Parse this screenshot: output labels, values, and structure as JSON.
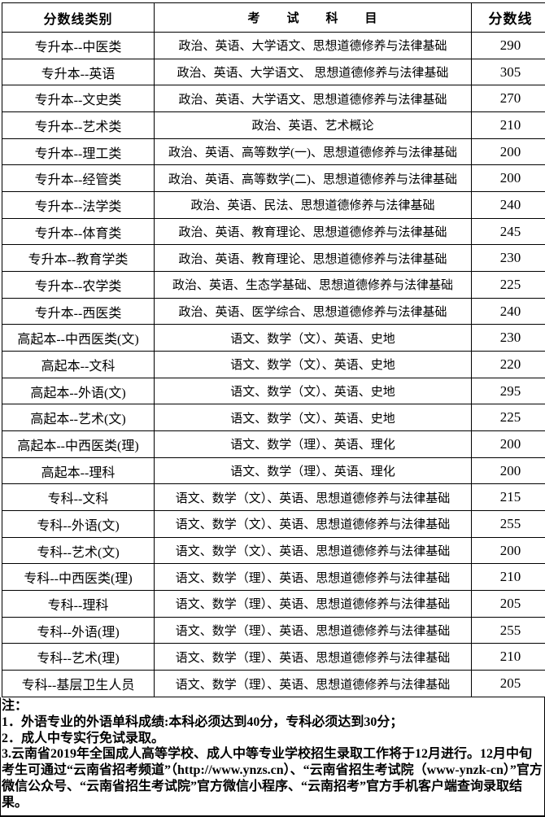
{
  "table": {
    "headers": {
      "category": "分数线类别",
      "subjects": "考　　试　　科　　目",
      "score": "分数线"
    },
    "rows": [
      {
        "category": "专升本--中医类",
        "subjects": "政治、英语、大学语文、思想道德修养与法律基础",
        "score": "290"
      },
      {
        "category": "专升本--英语",
        "subjects": "政治、英语、大学语文、 思想道德修养与法律基础",
        "score": "305"
      },
      {
        "category": "专升本--文史类",
        "subjects": "政治、英语、大学语文、思想道德修养与法律基础",
        "score": "270"
      },
      {
        "category": "专升本--艺术类",
        "subjects": "政治、英语、艺术概论",
        "score": "210"
      },
      {
        "category": "专升本--理工类",
        "subjects": "政治、英语、高等数学(一)、思想道德修养与法律基础",
        "score": "200"
      },
      {
        "category": "专升本--经管类",
        "subjects": "政治、英语、高等数学(二)、思想道德修养与法律基础",
        "score": "200"
      },
      {
        "category": "专升本--法学类",
        "subjects": "政治、英语、民法、思想道德修养与法律基础",
        "score": "240"
      },
      {
        "category": "专升本--体育类",
        "subjects": "政治、英语、教育理论、思想道德修养与法律基础",
        "score": "245"
      },
      {
        "category": "专升本--教育学类",
        "subjects": "政治、英语、教育理论、思想道德修养与法律基础",
        "score": "230"
      },
      {
        "category": "专升本--农学类",
        "subjects": "政治、英语、生态学基础、思想道德修养与法律基础",
        "score": "225"
      },
      {
        "category": "专升本--西医类",
        "subjects": "政治、英语、医学综合、思想道德修养与法律基础",
        "score": "240"
      },
      {
        "category": "高起本--中西医类(文)",
        "subjects": "语文、数学（文）、英语、史地",
        "score": "230"
      },
      {
        "category": "高起本--文科",
        "subjects": "语文、数学（文）、英语、史地",
        "score": "220"
      },
      {
        "category": "高起本--外语(文)",
        "subjects": "语文、数学（文）、英语、史地",
        "score": "295"
      },
      {
        "category": "高起本--艺术(文)",
        "subjects": "语文、数学（文）、英语、史地",
        "score": "225"
      },
      {
        "category": "高起本--中西医类(理)",
        "subjects": "语文、数学（理）、英语、理化",
        "score": "200"
      },
      {
        "category": "高起本--理科",
        "subjects": "语文、数学（理）、英语、理化",
        "score": "200"
      },
      {
        "category": "专科--文科",
        "subjects": "语文、数学（文）、英语、思想道德修养与法律基础",
        "score": "215"
      },
      {
        "category": "专科--外语(文)",
        "subjects": "语文、数学（文）、英语、思想道德修养与法律基础",
        "score": "255"
      },
      {
        "category": "专科--艺术(文)",
        "subjects": "语文、数学（文）、英语、思想道德修养与法律基础",
        "score": "200"
      },
      {
        "category": "专科--中西医类(理)",
        "subjects": "语文、数学（理）、英语、思想道德修养与法律基础",
        "score": "210"
      },
      {
        "category": "专科--理科",
        "subjects": "语文、数学（理）、英语、思想道德修养与法律基础",
        "score": "205"
      },
      {
        "category": "专科--外语(理)",
        "subjects": "语文、数学（理）、英语、思想道德修养与法律基础",
        "score": "255"
      },
      {
        "category": "专科--艺术(理)",
        "subjects": "语文、数学（理）、英语、思想道德修养与法律基础",
        "score": "210"
      },
      {
        "category": "专科--基层卫生人员",
        "subjects": "语文、数学（理）、英语、思想道德修养与法律基础",
        "score": "205"
      }
    ]
  },
  "notes": {
    "title": "注：",
    "items": [
      "1．外语专业的外语单科成绩:本科必须达到40分，专科必须达到30分；",
      "2．成人中专实行免试录取。",
      "3.云南省2019年全国成人高等学校、成人中等专业学校招生录取工作将于12月进行。12月中旬考生可通过“云南省招考频道”（http://www.ynzs.cn）、“云南省招生考试院（www-ynzk-cn）”官方微信公众号、“云南省招生考试院”官方微信小程序、“云南招考”官方手机客户端查询录取结果。"
    ]
  },
  "colors": {
    "border": "#000000",
    "text": "#000000",
    "background": "#ffffff"
  }
}
